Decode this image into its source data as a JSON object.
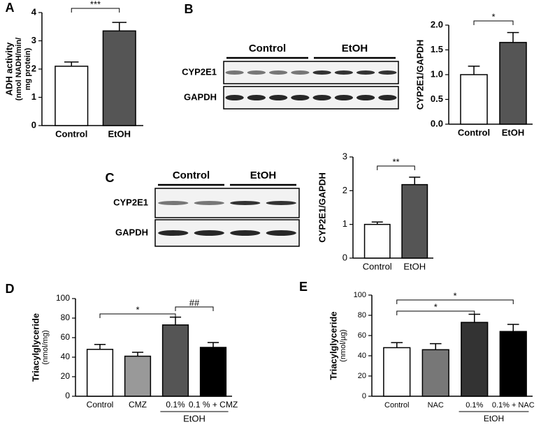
{
  "chart_data": [
    {
      "type": "bar",
      "letter": "A",
      "ylabel": [
        "ADH activity",
        "(nmol NADH/min/",
        "mg protein)"
      ],
      "categories": [
        "Control",
        "EtOH"
      ],
      "values": [
        2.1,
        3.35
      ],
      "errors": [
        0.15,
        0.3
      ],
      "colors": [
        "#ffffff",
        "#555555"
      ],
      "ylim": [
        0,
        4
      ],
      "yticks": [
        0,
        1,
        2,
        3,
        4
      ],
      "annotations": [
        "***"
      ]
    },
    {
      "type": "bar",
      "ylabel": [
        "CYP2E1/GAPDH"
      ],
      "categories": [
        "Control",
        "EtOH"
      ],
      "values": [
        1.0,
        1.65
      ],
      "errors": [
        0.17,
        0.2
      ],
      "colors": [
        "#ffffff",
        "#555555"
      ],
      "ylim": [
        0,
        2
      ],
      "yticks": [
        {
          "value": 0,
          "label": "0.0"
        },
        {
          "value": 0.5,
          "label": "0.5"
        },
        {
          "value": 1,
          "label": "1.0"
        },
        {
          "value": 1.5,
          "label": "1.5"
        },
        {
          "value": 2,
          "label": "2.0"
        }
      ],
      "annotations": [
        "*"
      ]
    },
    {
      "type": "bar",
      "ylabel": [
        "CYP2E1/GAPDH"
      ],
      "categories": [
        "Control",
        "EtOH"
      ],
      "values": [
        1.0,
        2.18
      ],
      "errors": [
        0.07,
        0.22
      ],
      "colors": [
        "#ffffff",
        "#555555"
      ],
      "ylim": [
        0,
        3
      ],
      "yticks": [
        0,
        1,
        2,
        3
      ],
      "annotations": [
        "**"
      ]
    },
    {
      "type": "bar",
      "letter": "D",
      "ylabel": [
        "Triacylglyceride",
        "(nmol/mg)"
      ],
      "categories": [
        "Control",
        "CMZ",
        "0.1%",
        "0.1 % + CMZ"
      ],
      "values": [
        48,
        41,
        73,
        50
      ],
      "errors": [
        5,
        4,
        8,
        5
      ],
      "colors": [
        "#ffffff",
        "#999999",
        "#555555",
        "#000000"
      ],
      "ylim": [
        0,
        100
      ],
      "yticks": [
        0,
        20,
        40,
        60,
        80,
        100
      ],
      "annotations": [
        "*",
        "##"
      ],
      "group": "EtOH"
    },
    {
      "type": "bar",
      "letter": "E",
      "ylabel": [
        "Triacylglyceride",
        "(nmol/µg)"
      ],
      "categories": [
        "Control",
        "NAC",
        "0.1%",
        "0.1% + NAC"
      ],
      "values": [
        48,
        46,
        73,
        64
      ],
      "errors": [
        5,
        6,
        8,
        7
      ],
      "colors": [
        "#ffffff",
        "#777777",
        "#333333",
        "#000000"
      ],
      "ylim": [
        0,
        100
      ],
      "yticks": [
        0,
        20,
        40,
        60,
        80,
        100
      ],
      "annotations": [
        "*",
        "*"
      ],
      "group": "EtOH"
    }
  ],
  "blots": [
    {
      "letter": "B",
      "groups": [
        "Control",
        "EtOH"
      ],
      "rows": [
        "CYP2E1",
        "GAPDH"
      ]
    },
    {
      "letter": "C",
      "groups": [
        "Control",
        "EtOH"
      ],
      "rows": [
        "CYP2E1",
        "GAPDH"
      ]
    }
  ]
}
